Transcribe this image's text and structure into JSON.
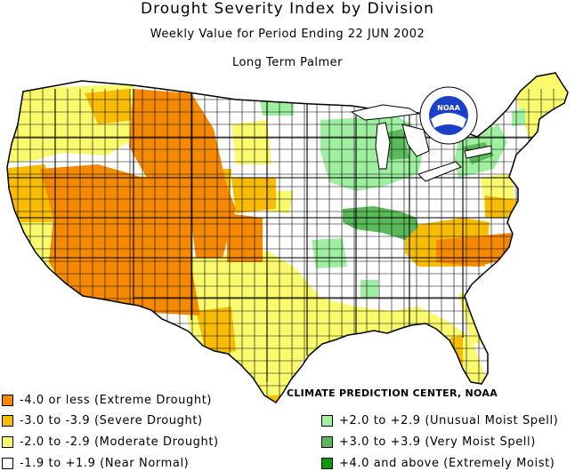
{
  "title": "Drought Severity Index by Division",
  "subtitle": "Weekly Value for Period Ending 22 JUN 2002",
  "index_name": "Long Term Palmer",
  "logo_text": "NOAA",
  "credit": "CLIMATE PREDICTION CENTER, NOAA",
  "colors": {
    "extreme_drought": "#f58a00",
    "severe_drought": "#f8bc00",
    "moderate_drought": "#fafa6e",
    "near_normal": "#ffffff",
    "unusual_moist": "#9ef0a0",
    "very_moist": "#5aba5a",
    "extremely_moist": "#089808",
    "boundary": "#000000",
    "logo_blue": "#1a40c8"
  },
  "legend": [
    {
      "label": "-4.0 or less (Extreme Drought)",
      "color": "#f58a00"
    },
    {
      "label": "-3.0 to -3.9 (Severe Drought)",
      "color": "#f8bc00"
    },
    {
      "label": "-2.0 to -2.9 (Moderate Drought)",
      "color": "#fafa6e"
    },
    {
      "label": "-1.9 to +1.9 (Near Normal)",
      "color": "#ffffff"
    },
    {
      "label": "+2.0 to +2.9 (Unusual Moist Spell)",
      "color": "#9ef0a0"
    },
    {
      "label": "+3.0 to +3.9 (Very Moist Spell)",
      "color": "#5aba5a"
    },
    {
      "label": "+4.0 and above (Extremely Moist)",
      "color": "#089808"
    }
  ]
}
